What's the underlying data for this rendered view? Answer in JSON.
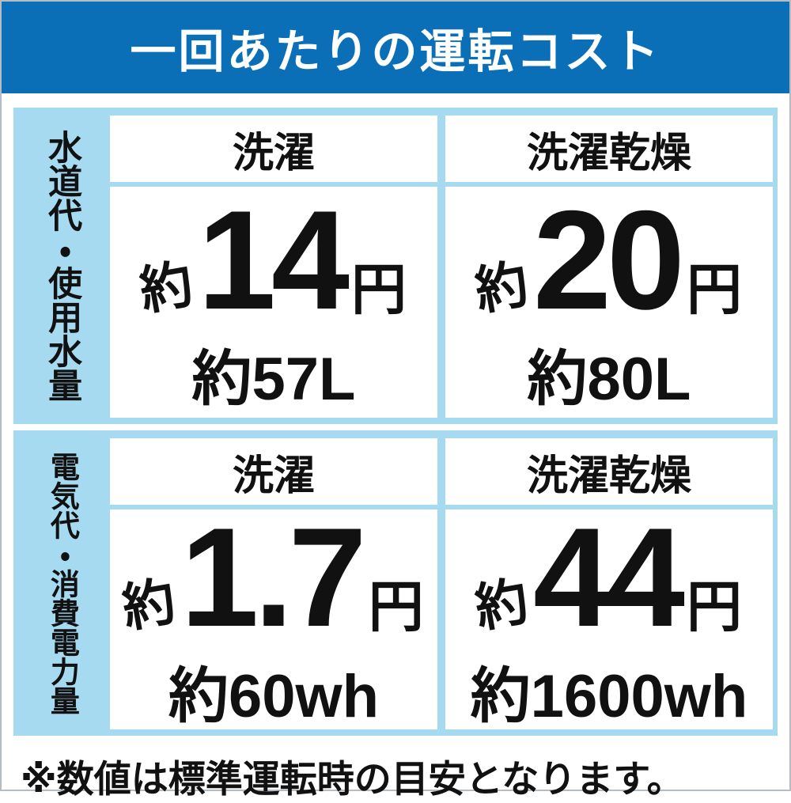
{
  "page": {
    "title": "一回あたりの運転コスト",
    "footnote": "※数値は標準運転時の目安となります。"
  },
  "colors": {
    "banner_bg": "#0b6fb8",
    "panel_bg": "#a6daf1",
    "cell_bg": "#ffffff",
    "title_text": "#ffffff",
    "body_text": "#111111",
    "page_border": "#b5bdc3"
  },
  "sections": [
    {
      "id": "water",
      "row_label": "水道代・使用水量",
      "columns": [
        {
          "header": "洗濯",
          "prefix": "約",
          "value": "14",
          "unit": "円",
          "sub": "約57L"
        },
        {
          "header": "洗濯乾燥",
          "prefix": "約",
          "value": "20",
          "unit": "円",
          "sub": "約80L"
        }
      ]
    },
    {
      "id": "electric",
      "row_label": "電気代・消費電力量",
      "columns": [
        {
          "header": "洗濯",
          "prefix": "約",
          "value": "1.7",
          "unit": "円",
          "sub": "約60wh"
        },
        {
          "header": "洗濯乾燥",
          "prefix": "約",
          "value": "44",
          "unit": "円",
          "sub": "約1600wh"
        }
      ]
    }
  ],
  "chart_data": {
    "type": "table",
    "title": "一回あたりの運転コスト",
    "row_headers": [
      "水道代・使用水量",
      "電気代・消費電力量"
    ],
    "column_headers": [
      "洗濯",
      "洗濯乾燥"
    ],
    "cells": [
      [
        {
          "cost": "約14円",
          "amount": "約57L"
        },
        {
          "cost": "約20円",
          "amount": "約80L"
        }
      ],
      [
        {
          "cost": "約1.7円",
          "amount": "約60wh"
        },
        {
          "cost": "約44円",
          "amount": "約1600wh"
        }
      ]
    ],
    "footnote": "※数値は標準運転時の目安となります。",
    "legend_position": "none",
    "grid": "table-borders-light-blue"
  }
}
